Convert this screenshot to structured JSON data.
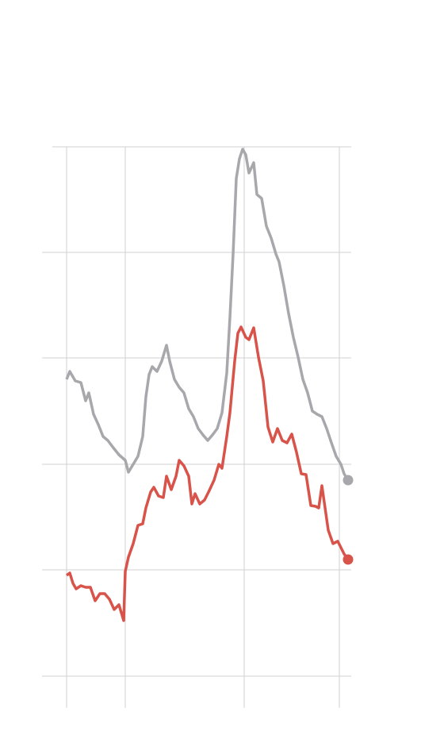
{
  "chart_data": {
    "type": "line",
    "xlim": [
      53,
      443
    ],
    "xticks": [
      84,
      158,
      308,
      428
    ],
    "ylim": [
      0,
      667
    ],
    "yticks": [
      0,
      134,
      267,
      401,
      534,
      667
    ],
    "grid": true,
    "series": [
      {
        "color": "#a8a8ac",
        "x": [
          84,
          88,
          95,
          102,
          108,
          112,
          118,
          124,
          130,
          136,
          142,
          150,
          158,
          162,
          168,
          174,
          180,
          184,
          188,
          192,
          198,
          204,
          210,
          214,
          220,
          226,
          232,
          238,
          244,
          250,
          256,
          262,
          268,
          274,
          280,
          286,
          290,
          294,
          298,
          302,
          306,
          310,
          314,
          320,
          324,
          330,
          336,
          342,
          348,
          352,
          358,
          364,
          370,
          376,
          382,
          388,
          394,
          400,
          406,
          412,
          418,
          424,
          430,
          434,
          439
        ],
        "values": [
          374,
          384,
          372,
          370,
          347,
          357,
          330,
          317,
          302,
          297,
          289,
          279,
          272,
          257,
          267,
          277,
          302,
          352,
          380,
          390,
          384,
          397,
          417,
          397,
          374,
          364,
          357,
          337,
          327,
          312,
          304,
          297,
          304,
          312,
          332,
          382,
          452,
          532,
          627,
          652,
          664,
          657,
          634,
          647,
          607,
          602,
          567,
          552,
          532,
          522,
          492,
          457,
          427,
          402,
          374,
          357,
          334,
          330,
          327,
          312,
          294,
          277,
          267,
          255,
          247
        ]
      },
      {
        "color": "#d8534a",
        "x": [
          84,
          88,
          92,
          96,
          102,
          108,
          114,
          120,
          126,
          132,
          138,
          144,
          150,
          156,
          158,
          162,
          168,
          174,
          180,
          184,
          190,
          194,
          200,
          206,
          210,
          216,
          222,
          226,
          232,
          238,
          242,
          246,
          252,
          258,
          264,
          270,
          276,
          280,
          286,
          290,
          296,
          300,
          304,
          310,
          314,
          320,
          326,
          332,
          338,
          344,
          350,
          356,
          362,
          368,
          374,
          380,
          386,
          392,
          398,
          402,
          406,
          410,
          414,
          420,
          426,
          430,
          434,
          439
        ],
        "values": [
          127,
          130,
          117,
          110,
          114,
          112,
          112,
          95,
          104,
          104,
          97,
          84,
          90,
          70,
          132,
          150,
          167,
          190,
          192,
          212,
          232,
          238,
          227,
          225,
          252,
          235,
          252,
          272,
          265,
          252,
          217,
          230,
          217,
          222,
          234,
          247,
          267,
          262,
          302,
          332,
          397,
          432,
          440,
          427,
          424,
          439,
          402,
          372,
          314,
          295,
          312,
          297,
          294,
          305,
          282,
          255,
          254,
          215,
          214,
          212,
          240,
          212,
          184,
          167,
          170,
          162,
          154,
          147
        ]
      }
    ]
  }
}
